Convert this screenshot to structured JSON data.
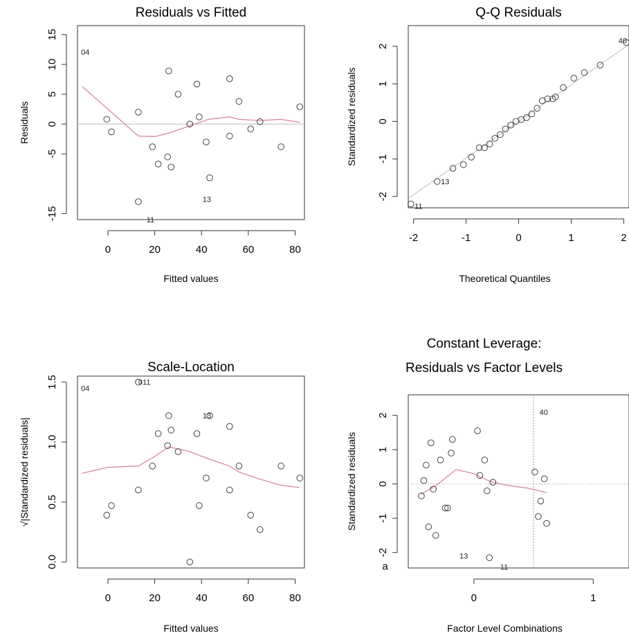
{
  "chart_data": [
    {
      "type": "scatter",
      "title": "Residuals vs Fitted",
      "xlabel": "Fitted values",
      "ylabel": "Residuals",
      "xlim": [
        -13,
        84
      ],
      "ylim": [
        -16,
        16.5
      ],
      "xticks": [
        0,
        20,
        40,
        60,
        80
      ],
      "xtick_labels": [
        "0",
        "20",
        "40",
        "60",
        "80"
      ],
      "yticks": [
        -15,
        -5,
        0,
        5,
        10,
        15
      ],
      "ytick_labels": [
        "-15",
        "-5",
        "0",
        "5",
        "10",
        "15"
      ],
      "points": [
        {
          "x": -0.5,
          "y": 0.8
        },
        {
          "x": 1.5,
          "y": -1.3
        },
        {
          "x": 13,
          "y": 2
        },
        {
          "x": 13,
          "y": -13
        },
        {
          "x": 19,
          "y": -3.8
        },
        {
          "x": 21.5,
          "y": -6.7
        },
        {
          "x": 25.5,
          "y": -5.5
        },
        {
          "x": 26,
          "y": 8.9
        },
        {
          "x": 27,
          "y": -7.2
        },
        {
          "x": 30,
          "y": 5
        },
        {
          "x": 35,
          "y": 0
        },
        {
          "x": 38,
          "y": 6.7
        },
        {
          "x": 39,
          "y": 1.2
        },
        {
          "x": 42,
          "y": -3
        },
        {
          "x": 43.5,
          "y": -9
        },
        {
          "x": 52,
          "y": -2
        },
        {
          "x": 52,
          "y": 7.6
        },
        {
          "x": 56,
          "y": 3.8
        },
        {
          "x": 61,
          "y": -0.8
        },
        {
          "x": 65,
          "y": 0.4
        },
        {
          "x": 74,
          "y": -3.8
        },
        {
          "x": 82,
          "y": 2.9
        }
      ],
      "smooth_line": [
        {
          "x": -11,
          "y": 6.3
        },
        {
          "x": 0,
          "y": 2.5
        },
        {
          "x": 13,
          "y": -2
        },
        {
          "x": 20,
          "y": -2.1
        },
        {
          "x": 26,
          "y": -1.5
        },
        {
          "x": 35,
          "y": -0.3
        },
        {
          "x": 43,
          "y": 0.8
        },
        {
          "x": 52,
          "y": 1.2
        },
        {
          "x": 56,
          "y": 0.8
        },
        {
          "x": 65,
          "y": 0.6
        },
        {
          "x": 74,
          "y": 0.8
        },
        {
          "x": 82,
          "y": 0.3
        }
      ],
      "reference_lines": {
        "h": [
          0
        ]
      },
      "annotations": [
        {
          "text": "04",
          "x": -11.5,
          "y": 12.1
        },
        {
          "text": "11",
          "x": 16.5,
          "y": -16
        },
        {
          "text": "13",
          "x": 40.5,
          "y": -12.6
        }
      ]
    },
    {
      "type": "scatter",
      "title": "Q-Q Residuals",
      "xlabel": "Theoretical Quantiles",
      "ylabel": "Standardized residuals",
      "xlim": [
        -2.1,
        2.1
      ],
      "ylim": [
        -2.3,
        2.55
      ],
      "xticks": [
        -2,
        -1,
        0,
        1,
        2
      ],
      "xtick_labels": [
        "-2",
        "-1",
        "0",
        "1",
        "2"
      ],
      "yticks": [
        -2,
        -1,
        0,
        1,
        2
      ],
      "ytick_labels": [
        "-2",
        "-1",
        "0",
        "1",
        "2"
      ],
      "points": [
        {
          "x": -2.05,
          "y": -2.2
        },
        {
          "x": -1.55,
          "y": -1.6
        },
        {
          "x": -1.25,
          "y": -1.25
        },
        {
          "x": -1.05,
          "y": -1.15
        },
        {
          "x": -0.9,
          "y": -0.95
        },
        {
          "x": -0.75,
          "y": -0.7
        },
        {
          "x": -0.65,
          "y": -0.7
        },
        {
          "x": -0.55,
          "y": -0.6
        },
        {
          "x": -0.45,
          "y": -0.45
        },
        {
          "x": -0.35,
          "y": -0.35
        },
        {
          "x": -0.25,
          "y": -0.2
        },
        {
          "x": -0.15,
          "y": -0.1
        },
        {
          "x": -0.05,
          "y": 0
        },
        {
          "x": 0.05,
          "y": 0.05
        },
        {
          "x": 0.15,
          "y": 0.1
        },
        {
          "x": 0.25,
          "y": 0.2
        },
        {
          "x": 0.35,
          "y": 0.35
        },
        {
          "x": 0.45,
          "y": 0.55
        },
        {
          "x": 0.55,
          "y": 0.6
        },
        {
          "x": 0.65,
          "y": 0.6
        },
        {
          "x": 0.7,
          "y": 0.65
        },
        {
          "x": 0.85,
          "y": 0.9
        },
        {
          "x": 1.05,
          "y": 1.15
        },
        {
          "x": 1.25,
          "y": 1.3
        },
        {
          "x": 1.55,
          "y": 1.5
        },
        {
          "x": 2.05,
          "y": 2.1
        }
      ],
      "reference_line": [
        {
          "x": -2.1,
          "y": -2.05
        },
        {
          "x": 2.1,
          "y": 2.05
        }
      ],
      "annotations": [
        {
          "text": "11",
          "x": -1.98,
          "y": -2.25
        },
        {
          "text": "13",
          "x": -1.48,
          "y": -1.6
        },
        {
          "text": "40",
          "x": 1.9,
          "y": 2.15
        }
      ]
    },
    {
      "type": "scatter",
      "title": "Scale-Location",
      "xlabel": "Fitted values",
      "ylabel": "√|Standardized residuals|",
      "xlim": [
        -13,
        84
      ],
      "ylim": [
        -0.05,
        1.55
      ],
      "xticks": [
        0,
        20,
        40,
        60,
        80
      ],
      "xtick_labels": [
        "0",
        "20",
        "40",
        "60",
        "80"
      ],
      "yticks": [
        0.0,
        0.5,
        1.0,
        1.5
      ],
      "ytick_labels": [
        "0.0",
        "0.5",
        "1.0",
        "1.5"
      ],
      "points": [
        {
          "x": -0.5,
          "y": 0.39
        },
        {
          "x": 1.5,
          "y": 0.47
        },
        {
          "x": 13,
          "y": 0.6
        },
        {
          "x": 13,
          "y": 1.5
        },
        {
          "x": 19,
          "y": 0.8
        },
        {
          "x": 21.5,
          "y": 1.07
        },
        {
          "x": 25.5,
          "y": 0.97
        },
        {
          "x": 26,
          "y": 1.22
        },
        {
          "x": 27,
          "y": 1.1
        },
        {
          "x": 30,
          "y": 0.92
        },
        {
          "x": 35,
          "y": 0
        },
        {
          "x": 38,
          "y": 1.07
        },
        {
          "x": 39,
          "y": 0.47
        },
        {
          "x": 42,
          "y": 0.7
        },
        {
          "x": 43.5,
          "y": 1.22
        },
        {
          "x": 52,
          "y": 0.6
        },
        {
          "x": 52,
          "y": 1.13
        },
        {
          "x": 56,
          "y": 0.8
        },
        {
          "x": 61,
          "y": 0.39
        },
        {
          "x": 65,
          "y": 0.27
        },
        {
          "x": 74,
          "y": 0.8
        },
        {
          "x": 82,
          "y": 0.7
        }
      ],
      "smooth_line": [
        {
          "x": -11,
          "y": 0.74
        },
        {
          "x": 0,
          "y": 0.79
        },
        {
          "x": 13,
          "y": 0.8
        },
        {
          "x": 20,
          "y": 0.88
        },
        {
          "x": 26,
          "y": 0.96
        },
        {
          "x": 35,
          "y": 0.92
        },
        {
          "x": 43,
          "y": 0.86
        },
        {
          "x": 52,
          "y": 0.8
        },
        {
          "x": 56,
          "y": 0.75
        },
        {
          "x": 65,
          "y": 0.69
        },
        {
          "x": 74,
          "y": 0.64
        },
        {
          "x": 82,
          "y": 0.62
        }
      ],
      "annotations": [
        {
          "text": "04",
          "x": -11.5,
          "y": 1.45
        },
        {
          "text": "011",
          "x": 13,
          "y": 1.5
        },
        {
          "text": "13",
          "x": 40.5,
          "y": 1.22
        }
      ]
    },
    {
      "type": "scatter",
      "title": "Constant Leverage:\nResiduals vs Factor Levels",
      "title_lines": [
        "Constant Leverage:",
        "Residuals vs Factor Levels"
      ],
      "xlabel": "Factor Level Combinations",
      "ylabel": "Standardized residuals",
      "xlim": [
        -0.55,
        1.3
      ],
      "ylim": [
        -2.45,
        2.6
      ],
      "xticks": [
        0,
        1
      ],
      "xtick_labels": [
        "0",
        "1"
      ],
      "yticks": [
        -2,
        -1,
        0,
        1,
        2
      ],
      "ytick_labels": [
        "-2",
        "-1",
        "0",
        "1",
        "2"
      ],
      "points": [
        {
          "x": -0.44,
          "y": -0.35
        },
        {
          "x": -0.42,
          "y": 0.1
        },
        {
          "x": -0.4,
          "y": 0.55
        },
        {
          "x": -0.38,
          "y": -1.25
        },
        {
          "x": -0.36,
          "y": 1.2
        },
        {
          "x": -0.34,
          "y": -0.15
        },
        {
          "x": -0.32,
          "y": -1.5
        },
        {
          "x": -0.28,
          "y": 0.7
        },
        {
          "x": -0.24,
          "y": -0.7
        },
        {
          "x": -0.22,
          "y": -0.7
        },
        {
          "x": -0.19,
          "y": 0.9
        },
        {
          "x": -0.18,
          "y": 1.3
        },
        {
          "x": 0.03,
          "y": 1.55
        },
        {
          "x": 0.05,
          "y": 0.25
        },
        {
          "x": 0.09,
          "y": 0.7
        },
        {
          "x": 0.11,
          "y": -0.2
        },
        {
          "x": 0.13,
          "y": -2.15
        },
        {
          "x": 0.16,
          "y": 0.05
        },
        {
          "x": 0.51,
          "y": 0.35
        },
        {
          "x": 0.54,
          "y": -0.95
        },
        {
          "x": 0.56,
          "y": -0.5
        },
        {
          "x": 0.59,
          "y": 0.15
        },
        {
          "x": 0.61,
          "y": -1.15
        }
      ],
      "smooth_line": [
        {
          "x": -0.44,
          "y": -0.3
        },
        {
          "x": -0.3,
          "y": 0
        },
        {
          "x": -0.15,
          "y": 0.42
        },
        {
          "x": 0,
          "y": 0.3
        },
        {
          "x": 0.15,
          "y": 0.05
        },
        {
          "x": 0.3,
          "y": -0.05
        },
        {
          "x": 0.45,
          "y": -0.12
        },
        {
          "x": 0.61,
          "y": -0.25
        }
      ],
      "reference_lines": {
        "h": [
          0
        ],
        "v": [
          0.5
        ]
      },
      "annotations": [
        {
          "text": "40",
          "x": 0.55,
          "y": 2.1
        },
        {
          "text": "13",
          "x": -0.12,
          "y": -2.1
        },
        {
          "text": "11",
          "x": 0.22,
          "y": -2.42
        },
        {
          "text": "a",
          "x": -0.72,
          "y": -2.42
        }
      ]
    }
  ]
}
